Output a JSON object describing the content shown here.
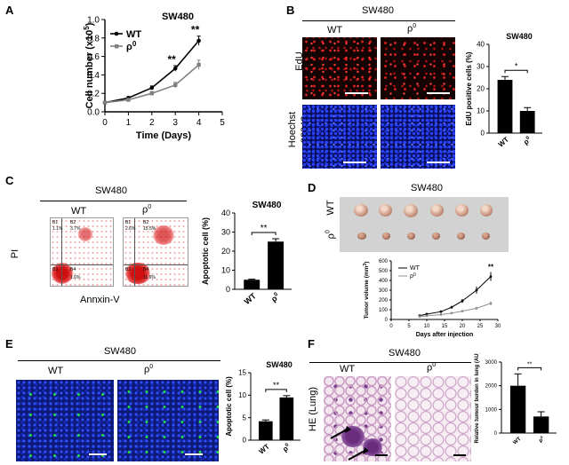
{
  "panels": {
    "A": {
      "letter": "A",
      "title": "SW480",
      "ylabel": "Cell number (x10",
      "ylabel_sup": "5",
      "ylabel_end": ")",
      "xlabel": "Time (Days)",
      "legend": [
        "WT",
        "ρ",
        "0"
      ],
      "sig": [
        "**",
        "**"
      ]
    },
    "B": {
      "letter": "B",
      "title": "SW480",
      "col_wt": "WT",
      "col_rho": "ρ",
      "col_rho_sup": "0",
      "row1": "EdU",
      "row2a": "Hoechst",
      "row2b": "33342",
      "chart_title": "SW480",
      "chart_ylabel": "EdU positive cells (%)",
      "sig": "*",
      "cat_wt": "WT",
      "cat_rho": "ρ",
      "cat_rho_sup": "0"
    },
    "C": {
      "letter": "C",
      "title": "SW480",
      "col_wt": "WT",
      "col_rho": "ρ",
      "col_rho_sup": "0",
      "ylabel": "PI",
      "xlabel": "Annxin-V",
      "wt_quadrants": [
        "B1",
        "B2",
        "B3",
        "B4",
        "1.1%",
        "3.7%",
        "1.6%"
      ],
      "rho_quadrants": [
        "B1",
        "B2",
        "B3",
        "B4",
        "2.6%",
        "15.5%",
        "11.6%"
      ],
      "chart_title": "SW480",
      "chart_ylabel": "Apoptotic cell (%)",
      "sig": "**",
      "cat_wt": "WT",
      "cat_rho": "ρ",
      "cat_rho_sup": "0"
    },
    "D": {
      "letter": "D",
      "title": "SW480",
      "row_wt": "WT",
      "row_rho": "ρ",
      "row_rho_sup": "0",
      "chart_ylabel": "Tumor volume (mm",
      "chart_ylabel_sup": "3",
      "chart_ylabel_end": ")",
      "chart_xlabel": "Days after injection",
      "legend": [
        "WT",
        "ρ",
        "0"
      ],
      "sig": "**"
    },
    "E": {
      "letter": "E",
      "title": "SW480",
      "col_wt": "WT",
      "col_rho": "ρ",
      "col_rho_sup": "0",
      "chart_title": "SW480",
      "chart_ylabel": "Apoptotic cell (%)",
      "sig": "**",
      "cat_wt": "WT",
      "cat_rho": "ρ",
      "cat_rho_sup": "0"
    },
    "F": {
      "letter": "F",
      "title": "SW480",
      "col_wt": "WT",
      "col_rho": "ρ",
      "col_rho_sup": "0",
      "row": "HE (Lung)",
      "chart_ylabel": "Relative tumour burden in lung (AU)",
      "sig": "**",
      "cat_wt": "WT",
      "cat_rho": "ρ",
      "cat_rho_sup": "0"
    }
  },
  "chart_data": [
    {
      "id": "A",
      "type": "line",
      "x": [
        0,
        1,
        2,
        3,
        4
      ],
      "series": [
        {
          "name": "WT",
          "values": [
            0.1,
            0.15,
            0.26,
            0.47,
            0.77
          ],
          "errors": [
            0.01,
            0.015,
            0.02,
            0.03,
            0.05
          ],
          "color": "#000000"
        },
        {
          "name": "ρ0",
          "values": [
            0.1,
            0.13,
            0.2,
            0.29,
            0.51
          ],
          "errors": [
            0.01,
            0.01,
            0.02,
            0.03,
            0.05
          ],
          "color": "#808080"
        }
      ],
      "xlim": [
        0,
        5
      ],
      "ylim": [
        0,
        1.0
      ],
      "xticks": [
        0,
        1,
        2,
        3,
        4,
        5
      ],
      "yticks": [
        0.0,
        0.2,
        0.4,
        0.6,
        0.8,
        1.0
      ],
      "xtick_labels": [
        "0",
        "1",
        "2",
        "3",
        "4",
        "5"
      ],
      "ytick_labels": [
        "0.0",
        "0.2",
        "0.4",
        "0.6",
        "0.8",
        "1.0"
      ],
      "sig_at_x": [
        3,
        4
      ]
    },
    {
      "id": "B",
      "type": "bar",
      "categories": [
        "WT",
        "ρ0"
      ],
      "values": [
        24,
        10
      ],
      "errors": [
        1.5,
        1.5
      ],
      "ylim": [
        0,
        40
      ],
      "yticks": [
        0,
        10,
        20,
        30,
        40
      ],
      "ytick_labels": [
        "0",
        "10",
        "20",
        "30",
        "40"
      ]
    },
    {
      "id": "C",
      "type": "bar",
      "categories": [
        "WT",
        "ρ0"
      ],
      "values": [
        5,
        25
      ],
      "errors": [
        0.3,
        1.5
      ],
      "ylim": [
        0,
        40
      ],
      "yticks": [
        0,
        10,
        20,
        30,
        40
      ],
      "ytick_labels": [
        "0",
        "10",
        "20",
        "30",
        "40"
      ]
    },
    {
      "id": "D",
      "type": "line",
      "x": [
        8,
        10,
        14,
        17,
        20,
        24,
        28
      ],
      "series": [
        {
          "name": "WT",
          "values": [
            40,
            55,
            80,
            125,
            190,
            300,
            440
          ],
          "errors": [
            5,
            8,
            10,
            15,
            20,
            35,
            45
          ],
          "color": "#000000"
        },
        {
          "name": "ρ0",
          "values": [
            30,
            38,
            50,
            65,
            85,
            115,
            165
          ],
          "errors": [
            4,
            5,
            6,
            8,
            10,
            15,
            20
          ],
          "color": "#909090"
        }
      ],
      "xlim": [
        0,
        30
      ],
      "ylim": [
        0,
        600
      ],
      "xticks": [
        0,
        5,
        10,
        15,
        20,
        25,
        30
      ],
      "yticks": [
        0,
        100,
        200,
        300,
        400,
        500,
        600
      ],
      "xtick_labels": [
        "0",
        "5",
        "10",
        "15",
        "20",
        "25",
        "30"
      ],
      "ytick_labels": [
        "0",
        "100",
        "200",
        "300",
        "400",
        "500",
        "600"
      ],
      "sig_at_x": 28
    },
    {
      "id": "E",
      "type": "bar",
      "categories": [
        "WT",
        "ρ0"
      ],
      "values": [
        4.2,
        9.5
      ],
      "errors": [
        0.3,
        0.4
      ],
      "ylim": [
        0,
        15
      ],
      "yticks": [
        0,
        5,
        10,
        15
      ],
      "ytick_labels": [
        "0",
        "5",
        "10",
        "15"
      ]
    },
    {
      "id": "F",
      "type": "bar",
      "categories": [
        "WT",
        "ρ0"
      ],
      "values": [
        2000,
        700
      ],
      "errors": [
        500,
        200
      ],
      "ylim": [
        0,
        3000
      ],
      "yticks": [
        0,
        1000,
        2000,
        3000
      ],
      "ytick_labels": [
        "0",
        "1000",
        "2000",
        "3000"
      ]
    }
  ]
}
